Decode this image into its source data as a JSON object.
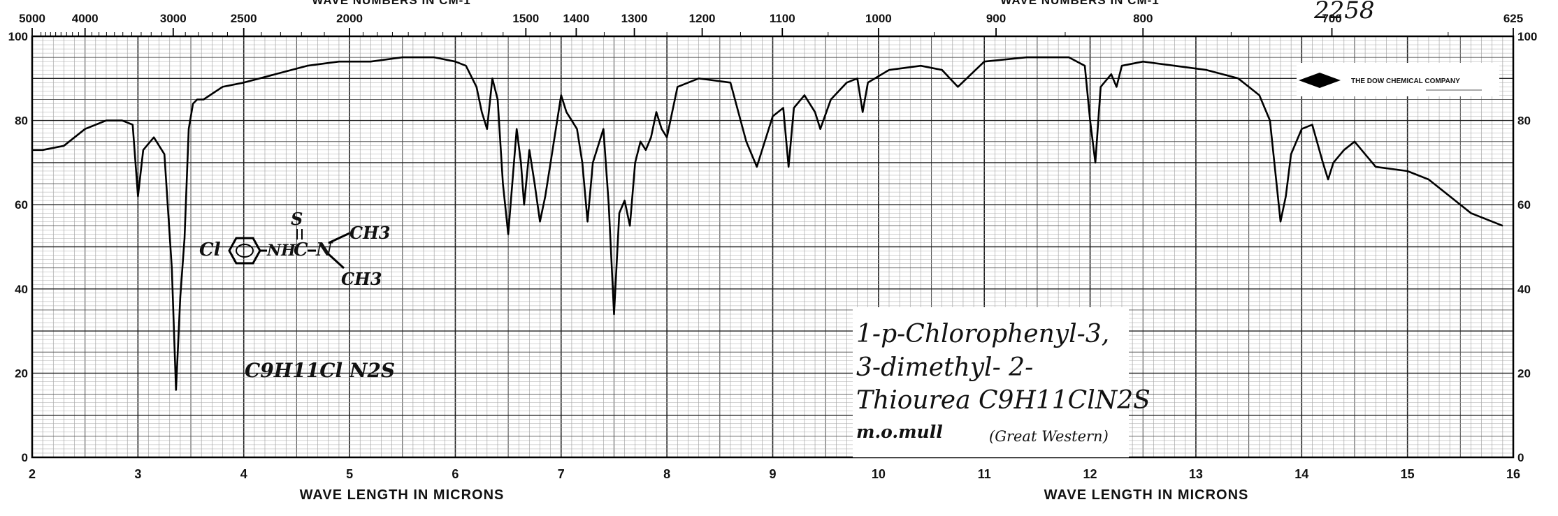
{
  "header": {
    "catalog_number": "2258",
    "top_axis_title_left": "WAVE NUMBERS IN CM-1",
    "top_axis_title_right": "WAVE NUMBERS IN CM-1"
  },
  "logo": {
    "icon": "diamond-icon",
    "text": "THE DOW CHEMICAL COMPANY"
  },
  "annotations": {
    "structure_labels": [
      "Cl",
      "NH",
      "C",
      "N",
      "S",
      "CH3",
      "CH3"
    ],
    "formula_left": "C9H11Cl N2S",
    "compound_name_line1": "1-p-Chlorophenyl-3,",
    "compound_name_line2": "3-dimethyl- 2-",
    "compound_name_line3": "Thiourea C9H11ClN2S",
    "method": "m.o.mull",
    "source": "(Great Western)"
  },
  "chart_data": {
    "type": "line",
    "title": "",
    "xlabel": "WAVE LENGTH IN MICRONS",
    "ylabel": "",
    "x2label": "WAVE NUMBERS IN CM-1",
    "xlim": [
      2,
      16
    ],
    "ylim": [
      0,
      100
    ],
    "x_ticks": [
      2,
      3,
      4,
      5,
      6,
      7,
      8,
      9,
      10,
      11,
      12,
      13,
      14,
      15,
      16
    ],
    "x_tick_labels": [
      "2",
      "3",
      "4",
      "5",
      "6",
      "7",
      "8",
      "9",
      "10",
      "11",
      "12",
      "13",
      "14",
      "15",
      "16"
    ],
    "y_ticks": [
      0,
      20,
      40,
      60,
      80,
      100
    ],
    "y_tick_labels": [
      "0",
      "20",
      "40",
      "60",
      "80",
      "100"
    ],
    "wavenumber_ticks": [
      5000,
      4000,
      3000,
      2500,
      2000,
      1500,
      1400,
      1300,
      1200,
      1100,
      1000,
      900,
      800,
      700,
      625
    ],
    "wavenumber_tick_labels": [
      "5000",
      "4000",
      "3000",
      "2500",
      "2000",
      "1500",
      "1400",
      "1300",
      "1200",
      "1100",
      "1000",
      "900",
      "800",
      "700",
      "625"
    ],
    "grid": true,
    "series": [
      {
        "x": [
          2.0,
          2.1,
          2.3,
          2.5,
          2.7,
          2.85,
          2.95,
          3.0,
          3.05,
          3.15,
          3.25,
          3.32,
          3.36,
          3.4,
          3.44,
          3.48,
          3.52,
          3.56,
          3.62,
          3.8,
          4.0,
          4.3,
          4.6,
          4.9,
          5.2,
          5.5,
          5.8,
          6.0,
          6.1,
          6.2,
          6.25,
          6.3,
          6.35,
          6.4,
          6.45,
          6.5,
          6.58,
          6.62,
          6.65,
          6.7,
          6.75,
          6.8,
          6.85,
          6.9,
          7.0,
          7.05,
          7.15,
          7.2,
          7.25,
          7.3,
          7.4,
          7.45,
          7.5,
          7.55,
          7.6,
          7.65,
          7.7,
          7.75,
          7.8,
          7.85,
          7.9,
          7.95,
          8.0,
          8.1,
          8.3,
          8.6,
          8.75,
          8.85,
          9.0,
          9.1,
          9.15,
          9.2,
          9.3,
          9.4,
          9.45,
          9.55,
          9.7,
          9.8,
          9.85,
          9.9,
          10.1,
          10.4,
          10.6,
          10.75,
          11.0,
          11.4,
          11.8,
          11.95,
          12.0,
          12.05,
          12.1,
          12.2,
          12.25,
          12.3,
          12.5,
          12.8,
          13.1,
          13.4,
          13.6,
          13.7,
          13.8,
          13.85,
          13.9,
          14.0,
          14.1,
          14.2,
          14.25,
          14.3,
          14.4,
          14.5,
          14.7,
          15.0,
          15.2,
          15.4,
          15.6,
          15.9
        ],
        "y": [
          73,
          73,
          74,
          78,
          80,
          80,
          79,
          62,
          73,
          76,
          72,
          45,
          16,
          38,
          52,
          78,
          84,
          85,
          85,
          88,
          89,
          91,
          93,
          94,
          94,
          95,
          95,
          94,
          93,
          88,
          82,
          78,
          90,
          85,
          65,
          53,
          78,
          70,
          60,
          73,
          65,
          56,
          62,
          70,
          86,
          82,
          78,
          70,
          56,
          70,
          78,
          60,
          34,
          58,
          61,
          55,
          70,
          75,
          73,
          76,
          82,
          78,
          76,
          88,
          90,
          89,
          75,
          69,
          81,
          83,
          69,
          83,
          86,
          82,
          78,
          85,
          89,
          90,
          82,
          89,
          92,
          93,
          92,
          88,
          94,
          95,
          95,
          93,
          80,
          70,
          88,
          91,
          88,
          93,
          94,
          93,
          92,
          90,
          86,
          80,
          56,
          62,
          72,
          78,
          79,
          70,
          66,
          70,
          73,
          75,
          69,
          68,
          66,
          62,
          58,
          55
        ]
      }
    ]
  }
}
